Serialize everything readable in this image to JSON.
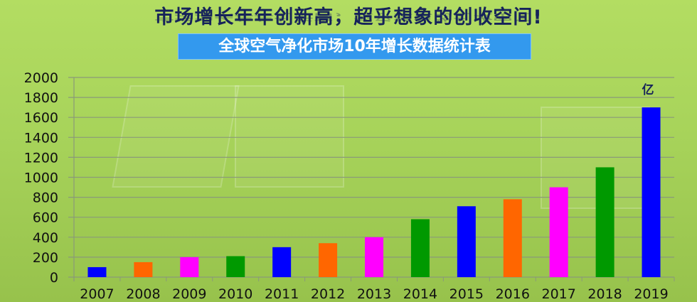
{
  "header": {
    "title": "市场增长年年创新高，超乎想象的创收空间!",
    "banner": "全球空气净化市场10年增长数据统计表"
  },
  "chart_data": {
    "type": "bar",
    "title": "全球空气净化市场10年增长数据统计表",
    "unit_label": "亿",
    "categories": [
      "2007",
      "2008",
      "2009",
      "2010",
      "2011",
      "2012",
      "2013",
      "2014",
      "2015",
      "2016",
      "2017",
      "2018",
      "2019"
    ],
    "values": [
      100,
      150,
      200,
      210,
      300,
      340,
      400,
      580,
      710,
      780,
      900,
      1100,
      1700
    ],
    "colors": [
      "#0000ff",
      "#ff6600",
      "#ff00ff",
      "#009900",
      "#0000ff",
      "#ff6600",
      "#ff00ff",
      "#009900",
      "#0000ff",
      "#ff6600",
      "#ff00ff",
      "#009900",
      "#0000ff"
    ],
    "ylim": [
      0,
      2000
    ],
    "yticks": [
      0,
      200,
      400,
      600,
      800,
      1000,
      1200,
      1400,
      1600,
      1800,
      2000
    ],
    "grid": true,
    "legend": "none"
  }
}
